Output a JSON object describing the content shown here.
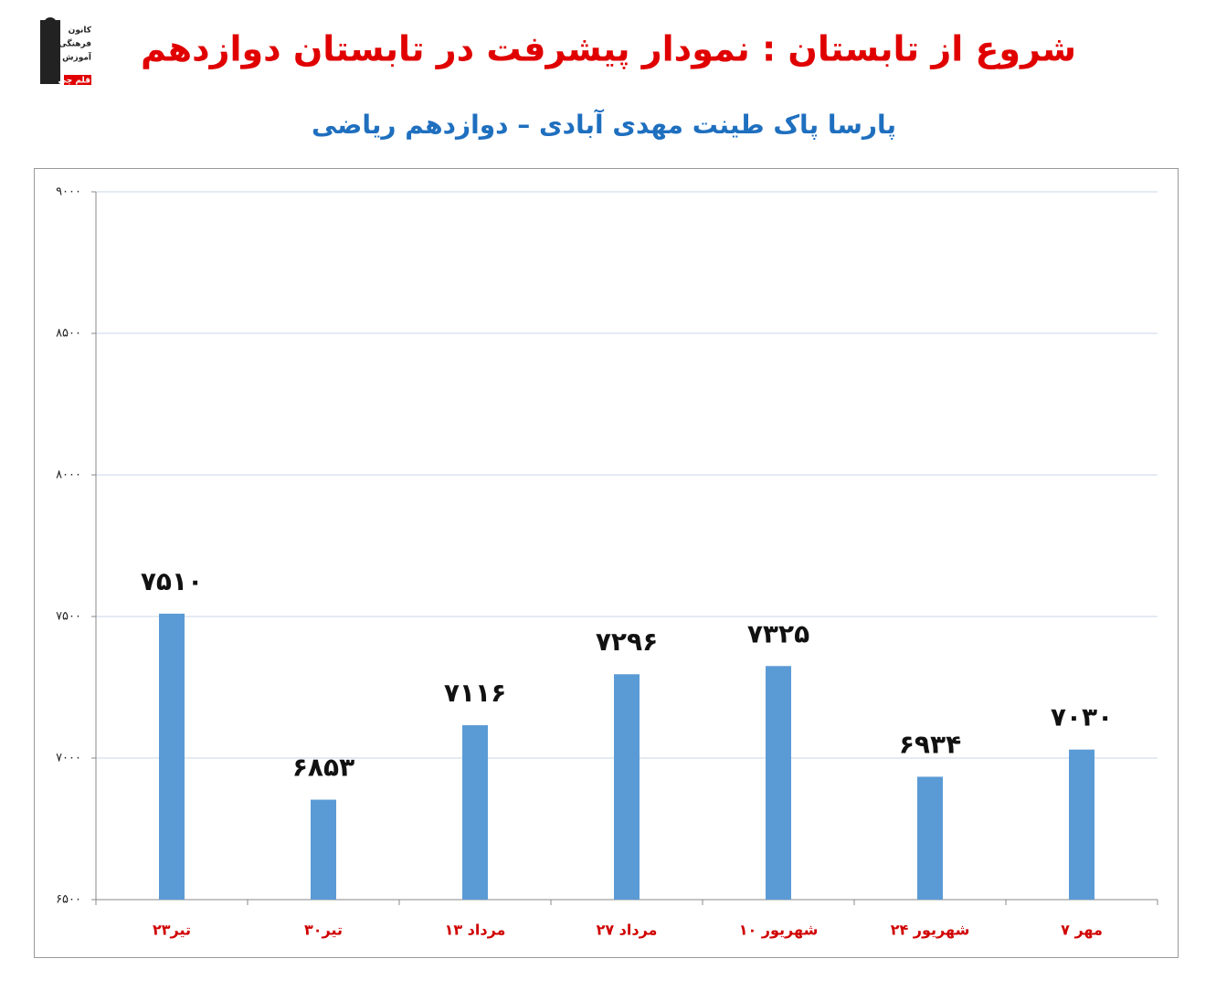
{
  "logo": [
    "کانون",
    "فرهنگی",
    "آموزش",
    "قلم چی"
  ],
  "chart_data": {
    "type": "bar",
    "title": "شروع از تابستان : نمودار پیشرفت در تابستان دوازدهم",
    "subtitle": "پارسا پاک طینت مهدی آبادی – دوازدهم ریاضی",
    "categories": [
      "۲۳تیر",
      "۳۰تیر",
      "۱۳ مرداد",
      "۲۷ مرداد",
      "۱۰ شهریور",
      "۲۴ شهریور",
      "۷ مهر"
    ],
    "values": [
      7510,
      6853,
      7116,
      7296,
      7325,
      6934,
      7030
    ],
    "value_labels": [
      "۷۵۱۰",
      "۶۸۵۳",
      "۷۱۱۶",
      "۷۲۹۶",
      "۷۳۲۵",
      "۶۹۳۴",
      "۷۰۳۰"
    ],
    "color": "#5b9bd5",
    "ylim": [
      6500,
      9000
    ],
    "yticks": [
      {
        "value": 6500,
        "label": "۶۵۰۰"
      },
      {
        "value": 7000,
        "label": "۷۰۰۰"
      },
      {
        "value": 7500,
        "label": "۷۵۰۰"
      },
      {
        "value": 8000,
        "label": "۸۰۰۰"
      },
      {
        "value": 8500,
        "label": "۸۵۰۰"
      },
      {
        "value": 9000,
        "label": "۹۰۰۰"
      }
    ],
    "grid": true
  }
}
